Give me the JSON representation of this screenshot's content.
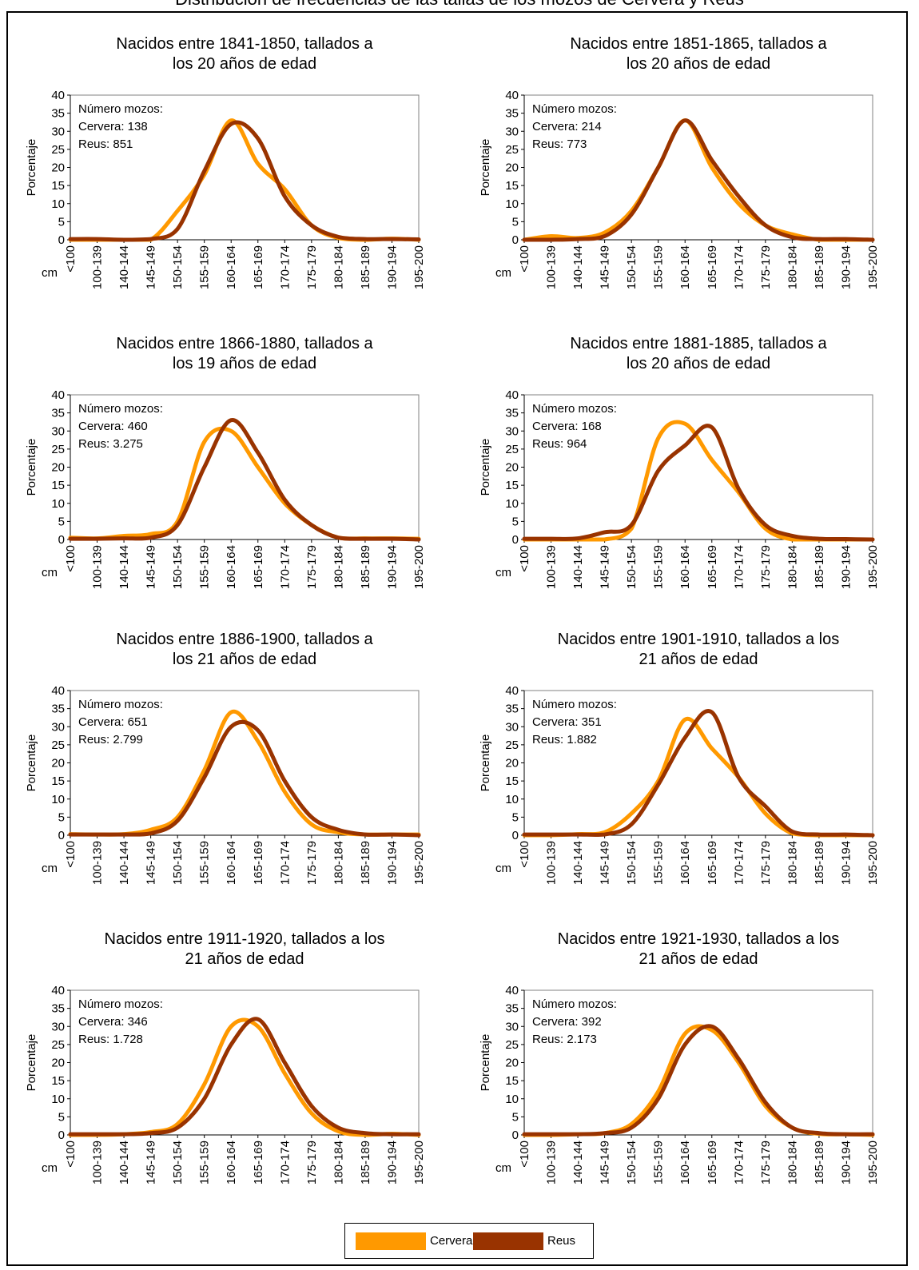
{
  "figure": {
    "title": "Distribución de frecuencias de las tallas de los mozos de Cervera y Reus"
  },
  "colors": {
    "Cervera": "#ff9900",
    "Reus": "#993300"
  },
  "legend": {
    "items": [
      "Cervera",
      "Reus"
    ],
    "placement": "bottom-center"
  },
  "chart_data": [
    {
      "type": "line",
      "title_lines": [
        "Nacidos entre 1841-1850, tallados a",
        "los 20 años de edad"
      ],
      "ylabel": "Porcentaje",
      "xlabel": "cm",
      "ylim": [
        0,
        40
      ],
      "yticks": [
        0,
        5,
        10,
        15,
        20,
        25,
        30,
        35,
        40
      ],
      "categories": [
        "<100",
        "100-139",
        "140-144",
        "145-149",
        "150-154",
        "155-159",
        "160-164",
        "165-169",
        "170-174",
        "175-179",
        "180-184",
        "185-189",
        "190-194",
        "195-200"
      ],
      "annotation": [
        "Número mozos:",
        "Cervera: 138",
        "Reus: 851"
      ],
      "series": [
        {
          "name": "Cervera",
          "values": [
            0,
            0,
            0,
            0,
            8,
            18,
            33,
            21,
            14,
            4,
            0.5,
            0,
            0.3,
            0
          ]
        },
        {
          "name": "Reus",
          "values": [
            0.2,
            0.2,
            0,
            0.2,
            3,
            19,
            32,
            28,
            12,
            4,
            0.8,
            0.2,
            0.2,
            0.1
          ]
        }
      ]
    },
    {
      "type": "line",
      "title_lines": [
        "Nacidos entre 1851-1865, tallados a",
        "los 20 años de edad"
      ],
      "ylabel": "Porcentaje",
      "xlabel": "cm",
      "ylim": [
        0,
        40
      ],
      "yticks": [
        0,
        5,
        10,
        15,
        20,
        25,
        30,
        35,
        40
      ],
      "categories": [
        "<100",
        "100-139",
        "140-144",
        "145-149",
        "150-154",
        "155-159",
        "160-164",
        "165-169",
        "170-174",
        "175-179",
        "180-184",
        "185-189",
        "190-194",
        "195-200"
      ],
      "annotation": [
        "Número mozos:",
        "Cervera: 214",
        "Reus: 773"
      ],
      "series": [
        {
          "name": "Cervera",
          "values": [
            0,
            1,
            0.5,
            2,
            8,
            20,
            33,
            20,
            10,
            4,
            1.5,
            0,
            0,
            0
          ]
        },
        {
          "name": "Reus",
          "values": [
            0,
            0,
            0.2,
            1,
            7,
            20,
            33,
            22,
            12,
            4,
            0.7,
            0.2,
            0.2,
            0
          ]
        }
      ]
    },
    {
      "type": "line",
      "title_lines": [
        "Nacidos entre 1866-1880, tallados a",
        "los 19 años de edad"
      ],
      "ylabel": "Porcentaje",
      "xlabel": "cm",
      "ylim": [
        0,
        40
      ],
      "yticks": [
        0,
        5,
        10,
        15,
        20,
        25,
        30,
        35,
        40
      ],
      "categories": [
        "<100",
        "100-139",
        "140-144",
        "145-149",
        "150-154",
        "155-159",
        "160-164",
        "165-169",
        "170-174",
        "175-179",
        "180-184",
        "185-189",
        "190-194",
        "195-200"
      ],
      "annotation": [
        "Número mozos:",
        "Cervera: 460",
        "Reus: 3.275"
      ],
      "series": [
        {
          "name": "Cervera",
          "values": [
            0.5,
            0.3,
            1,
            1.5,
            5,
            27,
            30,
            20,
            10,
            4,
            0.5,
            0.3,
            0.3,
            0.2
          ]
        },
        {
          "name": "Reus",
          "values": [
            0.2,
            0.2,
            0.3,
            0.5,
            4,
            20,
            33,
            24,
            11,
            4,
            0.5,
            0.2,
            0.2,
            0
          ]
        }
      ]
    },
    {
      "type": "line",
      "title_lines": [
        "Nacidos entre 1881-1885, tallados a",
        "los 20 años de edad"
      ],
      "ylabel": "Porcentaje",
      "xlabel": "cm",
      "ylim": [
        0,
        40
      ],
      "yticks": [
        0,
        5,
        10,
        15,
        20,
        25,
        30,
        35,
        40
      ],
      "categories": [
        "<100",
        "100-139",
        "140-144",
        "145-149",
        "150-154",
        "155-159",
        "160-164",
        "165-169",
        "170-174",
        "175-179",
        "180-184",
        "185-189",
        "190-194",
        "195-200"
      ],
      "annotation": [
        "Número mozos:",
        "Cervera: 168",
        "Reus: 964"
      ],
      "series": [
        {
          "name": "Cervera",
          "values": [
            0,
            0,
            0,
            0,
            3,
            28,
            32,
            22,
            13,
            3,
            0,
            0,
            0,
            0
          ]
        },
        {
          "name": "Reus",
          "values": [
            0.2,
            0.2,
            0.3,
            2,
            4,
            19,
            26,
            31,
            14,
            4,
            1,
            0.2,
            0.1,
            0
          ]
        }
      ]
    },
    {
      "type": "line",
      "title_lines": [
        "Nacidos entre 1886-1900, tallados a",
        "los 21 años de edad"
      ],
      "ylabel": "Porcentaje",
      "xlabel": "cm",
      "ylim": [
        0,
        40
      ],
      "yticks": [
        0,
        5,
        10,
        15,
        20,
        25,
        30,
        35,
        40
      ],
      "categories": [
        "<100",
        "100-139",
        "140-144",
        "145-149",
        "150-154",
        "155-159",
        "160-164",
        "165-169",
        "170-174",
        "175-179",
        "180-184",
        "185-189",
        "190-194",
        "195-200"
      ],
      "annotation": [
        "Número mozos:",
        "Cervera: 651",
        "Reus: 2.799"
      ],
      "series": [
        {
          "name": "Cervera",
          "values": [
            0.3,
            0.2,
            0.3,
            1.5,
            5,
            18,
            34,
            26,
            12,
            3,
            0.8,
            0.2,
            0.2,
            0.2
          ]
        },
        {
          "name": "Reus",
          "values": [
            0.2,
            0.2,
            0.2,
            0.5,
            4,
            16,
            30,
            29,
            15,
            5,
            1.5,
            0.2,
            0.2,
            0
          ]
        }
      ]
    },
    {
      "type": "line",
      "title_lines": [
        "Nacidos entre 1901-1910, tallados a los",
        "21 años de edad"
      ],
      "ylabel": "Porcentaje",
      "xlabel": "cm",
      "ylim": [
        0,
        40
      ],
      "yticks": [
        0,
        5,
        10,
        15,
        20,
        25,
        30,
        35,
        40
      ],
      "categories": [
        "<100",
        "100-139",
        "140-144",
        "145-149",
        "150-154",
        "155-159",
        "160-164",
        "165-169",
        "170-174",
        "175-179",
        "180-184",
        "185-189",
        "190-194",
        "195-200"
      ],
      "annotation": [
        "Número mozos:",
        "Cervera: 351",
        "Reus: 1.882"
      ],
      "series": [
        {
          "name": "Cervera",
          "values": [
            0,
            0,
            0.3,
            0.8,
            6,
            15,
            32,
            24,
            16,
            6,
            0.5,
            0,
            0,
            0
          ]
        },
        {
          "name": "Reus",
          "values": [
            0.2,
            0.2,
            0.2,
            0.2,
            3,
            14,
            27,
            34,
            16,
            8,
            1,
            0.2,
            0.2,
            0
          ]
        }
      ]
    },
    {
      "type": "line",
      "title_lines": [
        "Nacidos entre 1911-1920, tallados a los",
        "21 años de edad"
      ],
      "ylabel": "Porcentaje",
      "xlabel": "cm",
      "ylim": [
        0,
        40
      ],
      "yticks": [
        0,
        5,
        10,
        15,
        20,
        25,
        30,
        35,
        40
      ],
      "categories": [
        "<100",
        "100-139",
        "140-144",
        "145-149",
        "150-154",
        "155-159",
        "160-164",
        "165-169",
        "170-174",
        "175-179",
        "180-184",
        "185-189",
        "190-194",
        "195-200"
      ],
      "annotation": [
        "Número mozos:",
        "Cervera: 346",
        "Reus: 1.728"
      ],
      "series": [
        {
          "name": "Cervera",
          "values": [
            0,
            0,
            0.2,
            0.8,
            3,
            14,
            30,
            30,
            17,
            6,
            1,
            0,
            0.3,
            0
          ]
        },
        {
          "name": "Reus",
          "values": [
            0.2,
            0.2,
            0.2,
            0.5,
            2,
            10,
            25,
            32,
            20,
            8,
            2,
            0.5,
            0.2,
            0.2
          ]
        }
      ]
    },
    {
      "type": "line",
      "title_lines": [
        "Nacidos entre 1921-1930, tallados a los",
        "21 años de edad"
      ],
      "ylabel": "Porcentaje",
      "xlabel": "cm",
      "ylim": [
        0,
        40
      ],
      "yticks": [
        0,
        5,
        10,
        15,
        20,
        25,
        30,
        35,
        40
      ],
      "categories": [
        "<100",
        "100-139",
        "140-144",
        "145-149",
        "150-154",
        "155-159",
        "160-164",
        "165-169",
        "170-174",
        "175-179",
        "180-184",
        "185-189",
        "190-194",
        "195-200"
      ],
      "annotation": [
        "Número mozos:",
        "Cervera: 392",
        "Reus: 2.173"
      ],
      "series": [
        {
          "name": "Cervera",
          "values": [
            0,
            0,
            0.2,
            0.5,
            3,
            12,
            28,
            29,
            20,
            8,
            2,
            0.3,
            0.2,
            0
          ]
        },
        {
          "name": "Reus",
          "values": [
            0.2,
            0.2,
            0.2,
            0.5,
            2,
            10,
            25,
            30,
            21,
            9,
            2,
            0.5,
            0.2,
            0.2
          ]
        }
      ]
    }
  ]
}
